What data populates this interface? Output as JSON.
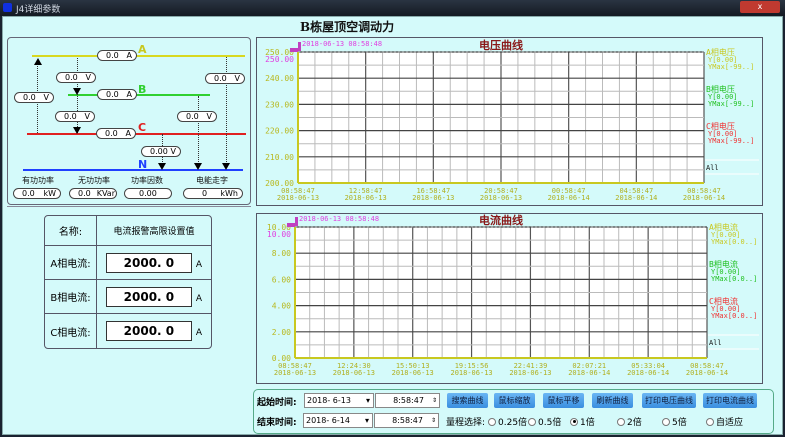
{
  "window": {
    "title": "J4详细参数",
    "close_label": "x"
  },
  "main_title": "B栋屋顶空调动力",
  "diagram": {
    "phases": {
      "A": "A",
      "B": "B",
      "C": "C",
      "N": "N"
    },
    "phase_colors": {
      "A": "#d8d820",
      "B": "#30d030",
      "C": "#e02020",
      "N": "#2040ff"
    },
    "currents": [
      {
        "value": "0.0",
        "unit": "A"
      },
      {
        "value": "0.0",
        "unit": "A"
      },
      {
        "value": "0.0",
        "unit": "A"
      }
    ],
    "voltages": [
      {
        "value": "0.0",
        "unit": "V"
      },
      {
        "value": "0.0",
        "unit": "V"
      },
      {
        "value": "0.0",
        "unit": "V"
      },
      {
        "value": "0.0",
        "unit": "V"
      },
      {
        "value": "0.0",
        "unit": "V"
      },
      {
        "value": "0.00",
        "unit": "V"
      }
    ],
    "summary": [
      {
        "label": "有功功率",
        "value": "0.0",
        "unit": "kW"
      },
      {
        "label": "无功功率",
        "value": "0.0",
        "unit": "KVar"
      },
      {
        "label": "功率因数",
        "value": "0.00",
        "unit": ""
      },
      {
        "label": "电能走字",
        "value": "0",
        "unit": "kWh"
      }
    ]
  },
  "alarm": {
    "header_name": "名称:",
    "header_value": "电流报警高限设置值",
    "rows": [
      {
        "label": "A相电流:",
        "value": "2000. 0",
        "unit": "A"
      },
      {
        "label": "B相电流:",
        "value": "2000. 0",
        "unit": "A"
      },
      {
        "label": "C相电流:",
        "value": "2000. 0",
        "unit": "A"
      }
    ]
  },
  "chart_data": [
    {
      "type": "line",
      "title": "电压曲线",
      "cursor_time": "2018-06-13 08:58:48",
      "cursor_value": "250.00",
      "ylim": [
        200,
        250
      ],
      "yticks": [
        "200.00",
        "210.00",
        "220.00",
        "230.00",
        "240.00",
        "250.00"
      ],
      "xticks": [
        [
          "08:58:47",
          "2018-06-13"
        ],
        [
          "12:58:47",
          "2018-06-13"
        ],
        [
          "16:58:47",
          "2018-06-13"
        ],
        [
          "20:58:47",
          "2018-06-13"
        ],
        [
          "00:58:47",
          "2018-06-14"
        ],
        [
          "04:58:47",
          "2018-06-14"
        ],
        [
          "08:58:47",
          "2018-06-14"
        ]
      ],
      "series": [
        {
          "name": "A相电压",
          "y": "Y[0.00]",
          "ymax": "YMax[-99..]",
          "color": "#c8c820",
          "values": []
        },
        {
          "name": "B相电压",
          "y": "Y[0.00]",
          "ymax": "YMax[-99..]",
          "color": "#20c020",
          "values": []
        },
        {
          "name": "C相电压",
          "y": "Y[0.00]",
          "ymax": "YMax[-99..]",
          "color": "#f03030",
          "values": []
        }
      ],
      "all_label": "All",
      "grid": true
    },
    {
      "type": "line",
      "title": "电流曲线",
      "cursor_time": "2018-06-13 08:58:48",
      "cursor_value": "10.00",
      "ylim": [
        0,
        10
      ],
      "yticks": [
        "0.00",
        "2.00",
        "4.00",
        "6.00",
        "8.00",
        "10.00"
      ],
      "xticks": [
        [
          "08:58:47",
          "2018-06-13"
        ],
        [
          "12:24:30",
          "2018-06-13"
        ],
        [
          "15:50:13",
          "2018-06-13"
        ],
        [
          "19:15:56",
          "2018-06-13"
        ],
        [
          "22:41:39",
          "2018-06-13"
        ],
        [
          "02:07:21",
          "2018-06-14"
        ],
        [
          "05:33:04",
          "2018-06-14"
        ],
        [
          "08:58:47",
          "2018-06-14"
        ]
      ],
      "series": [
        {
          "name": "A相电流",
          "y": "Y[0.00]",
          "ymax": "YMax[0.0..]",
          "color": "#c8c820",
          "values": []
        },
        {
          "name": "B相电流",
          "y": "Y[0.00]",
          "ymax": "YMax[0.0..]",
          "color": "#20c020",
          "values": []
        },
        {
          "name": "C相电流",
          "y": "Y[0.00]",
          "ymax": "YMax[0.0..]",
          "color": "#f03030",
          "values": []
        }
      ],
      "all_label": "All",
      "grid": true
    }
  ],
  "controls": {
    "start_label": "起始时间:",
    "start_date": "2018- 6-13",
    "start_time": "8:58:47",
    "end_label": "结束时间:",
    "end_date": "2018- 6-14",
    "end_time": "8:58:47",
    "buttons": [
      "搜索曲线",
      "鼠标缩放",
      "鼠标平移",
      "刷新曲线",
      "打印电压曲线",
      "打印电流曲线"
    ],
    "range_label": "量程选择:",
    "range_options": [
      "0.25倍",
      "0.5倍",
      "1倍",
      "2倍",
      "5倍",
      "自适应"
    ],
    "range_selected": "1倍"
  }
}
